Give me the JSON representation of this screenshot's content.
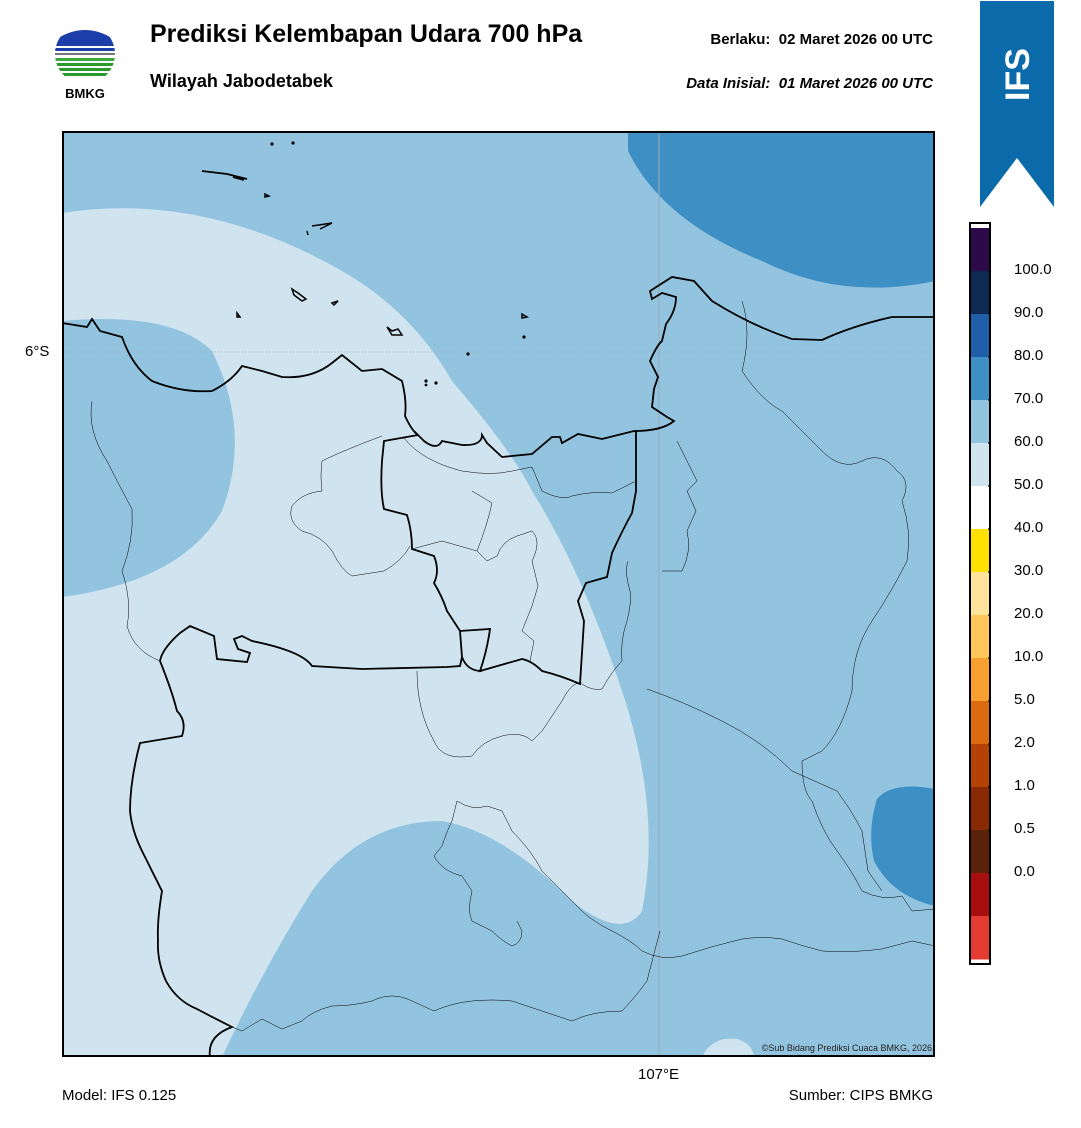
{
  "header": {
    "title": "Prediksi Kelembapan Udara 700 hPa",
    "subtitle": "Wilayah Jabodetabek",
    "valid_label": "Berlaku:",
    "valid_value": "02 Maret 2026 00 UTC",
    "init_label": "Data Inisial:",
    "init_value": "01 Maret 2026 00 UTC"
  },
  "logo": {
    "text": "BMKG",
    "icon": "bmkg-logo"
  },
  "ribbon": {
    "text": "IFS",
    "color": "#0b6aa9"
  },
  "map": {
    "lat_label": "6°S",
    "lon_label": "107°E",
    "copyright": "©Sub Bidang Prediksi Cuaca BMKG, 2026"
  },
  "footer": {
    "model": "Model: IFS 0.125",
    "source": "Sumber: CIPS BMKG"
  },
  "colorbar": {
    "labels": [
      "100.0",
      "90.0",
      "80.0",
      "70.0",
      "60.0",
      "50.0",
      "40.0",
      "30.0",
      "20.0",
      "10.0",
      "5.0",
      "2.0",
      "1.0",
      "0.5",
      "0.0"
    ],
    "colors_top_to_bottom": [
      "#2d0a4a",
      "#0e2a52",
      "#1f5ea8",
      "#3e90c4",
      "#93c4df",
      "#d0e4f0",
      "#ffffff",
      "#ffe000",
      "#ffe39a",
      "#ffc65a",
      "#f7a030",
      "#dc6a0e",
      "#b44206",
      "#8a2a04",
      "#5a2208",
      "#a80e0e",
      "#e33a32"
    ]
  },
  "legend_ticks": [
    "100.0",
    "90.0",
    "80.0",
    "70.0",
    "60.0",
    "50.0",
    "40.0",
    "30.0",
    "20.0",
    "10.0",
    "5.0",
    "2.0",
    "1.0",
    "0.5",
    "0.0"
  ]
}
